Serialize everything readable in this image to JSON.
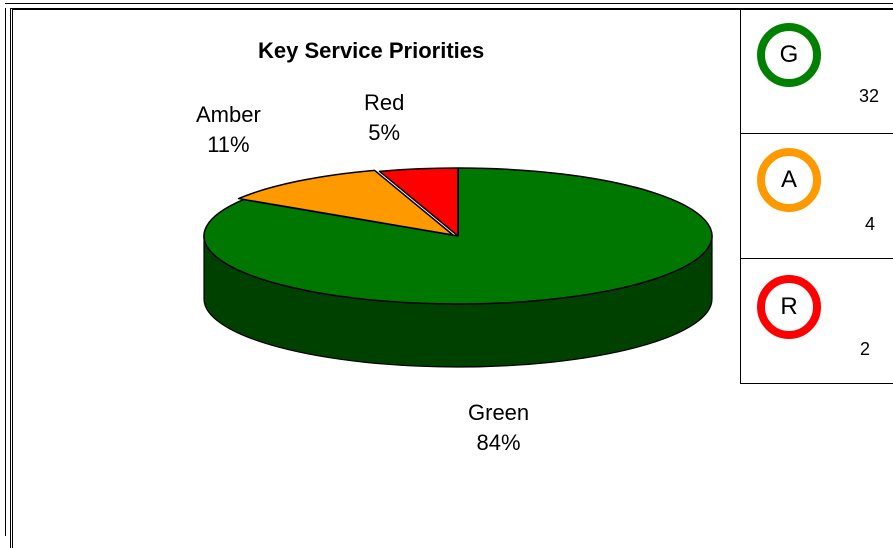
{
  "chart_data": {
    "type": "pie",
    "title": "Key Service Priorities",
    "slices": [
      {
        "name": "Green",
        "value": 84,
        "label": "84%",
        "color": "#007700"
      },
      {
        "name": "Amber",
        "value": 11,
        "label": "11%",
        "color": "#ff9900"
      },
      {
        "name": "Red",
        "value": 5,
        "label": "5%",
        "color": "#ff0000"
      }
    ],
    "three_d": true
  },
  "rag_status": [
    {
      "letter": "G",
      "count": "32",
      "color": "#008000"
    },
    {
      "letter": "A",
      "count": "4",
      "color": "#ff9900"
    },
    {
      "letter": "R",
      "count": "2",
      "color": "#ff0000"
    }
  ]
}
